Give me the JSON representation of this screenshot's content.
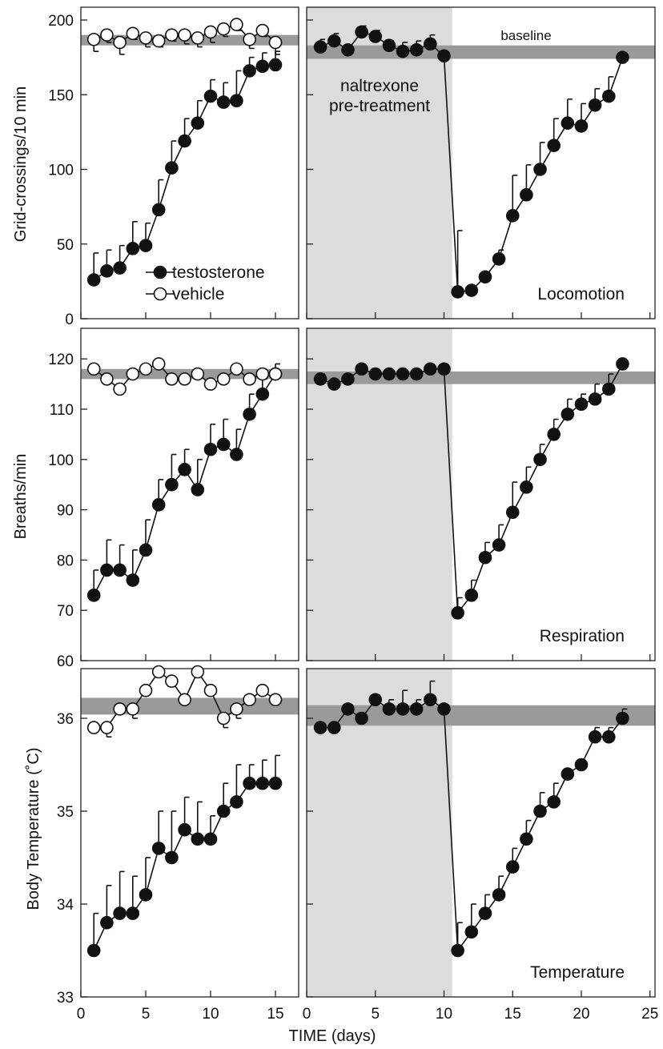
{
  "colors": {
    "baseline_band": "#9a9a9a",
    "shade": "#dcdcdc",
    "line": "#111111",
    "filled_marker": "#111111",
    "open_marker": "#ffffff"
  },
  "chart_data": [
    {
      "id": "locomotion-left",
      "type": "line",
      "ylabel": "Grid-crossings/10 min",
      "xlim": [
        0,
        16
      ],
      "ylim": [
        0,
        210
      ],
      "yticks": [
        0,
        50,
        100,
        150,
        200
      ],
      "baseline_band": [
        183,
        190
      ],
      "legend": [
        "testosterone",
        "vehicle"
      ],
      "legend_position": "bottom-left",
      "series": [
        {
          "name": "testosterone",
          "marker": "filled",
          "x": [
            1,
            2,
            3,
            4,
            5,
            6,
            7,
            8,
            9,
            10,
            11,
            12,
            13,
            14,
            15
          ],
          "y": [
            26,
            32,
            34,
            47,
            49,
            73,
            101,
            119,
            131,
            149,
            145,
            146,
            166,
            169,
            170
          ],
          "err_upper": [
            18,
            14,
            15,
            18,
            15,
            20,
            18,
            15,
            15,
            11,
            13,
            20,
            9,
            9,
            9
          ]
        },
        {
          "name": "vehicle",
          "marker": "open",
          "x": [
            1,
            2,
            3,
            4,
            5,
            6,
            7,
            8,
            9,
            10,
            11,
            12,
            13,
            14,
            15
          ],
          "y": [
            187,
            190,
            185,
            191,
            188,
            186,
            190,
            190,
            188,
            192,
            194,
            197,
            187,
            193,
            185
          ],
          "err_lower": [
            8,
            5,
            8,
            4,
            6,
            4,
            4,
            6,
            6,
            7,
            5,
            4,
            6,
            4,
            8
          ]
        }
      ]
    },
    {
      "id": "locomotion-right",
      "type": "line",
      "label": "Locomotion",
      "xlim": [
        0,
        25
      ],
      "ylim": [
        0,
        210
      ],
      "shaded_x": [
        0,
        10.6
      ],
      "shade_label": [
        "naltrexone",
        "pre-treatment"
      ],
      "band_label": "baseline",
      "baseline_band": [
        174,
        183
      ],
      "series": [
        {
          "name": "testosterone",
          "marker": "filled",
          "x": [
            1,
            2,
            3,
            4,
            5,
            6,
            7,
            8,
            9,
            10,
            11,
            12,
            13,
            14,
            15,
            16,
            17,
            18,
            19,
            20,
            21,
            22,
            23
          ],
          "y": [
            182,
            186,
            180,
            192,
            189,
            183,
            179,
            180,
            184,
            176,
            18,
            19,
            28,
            40,
            69,
            83,
            100,
            116,
            131,
            129,
            143,
            149,
            175
          ],
          "err_upper": [
            5,
            5,
            0,
            4,
            4,
            3,
            6,
            6,
            6,
            0,
            41,
            0,
            0,
            6,
            27,
            20,
            18,
            18,
            16,
            15,
            11,
            13,
            0
          ]
        }
      ]
    },
    {
      "id": "respiration-left",
      "type": "line",
      "ylabel": "Breaths/min",
      "xlim": [
        0,
        16
      ],
      "ylim": [
        60,
        122
      ],
      "yticks": [
        60,
        70,
        80,
        90,
        100,
        110,
        120
      ],
      "baseline_band": [
        116,
        118
      ],
      "series": [
        {
          "name": "testosterone",
          "marker": "filled",
          "x": [
            1,
            2,
            3,
            4,
            5,
            6,
            7,
            8,
            9,
            10,
            11,
            12,
            13,
            14,
            15
          ],
          "y": [
            73,
            78,
            78,
            76,
            82,
            91,
            95,
            98,
            94,
            102,
            103,
            101,
            109,
            113,
            117
          ],
          "err_upper": [
            5,
            6,
            5,
            6,
            6,
            5,
            6,
            4,
            6,
            5,
            5,
            5,
            4,
            3,
            2
          ]
        },
        {
          "name": "vehicle",
          "marker": "open",
          "x": [
            1,
            2,
            3,
            4,
            5,
            6,
            7,
            8,
            9,
            10,
            11,
            12,
            13,
            14,
            15
          ],
          "y": [
            118,
            116,
            114,
            117,
            118,
            119,
            116,
            116,
            117,
            115,
            116,
            118,
            116,
            117,
            117
          ],
          "err_lower": [
            0,
            0,
            0,
            0,
            0,
            0,
            0,
            0,
            0,
            0,
            0,
            0,
            0,
            0,
            0
          ]
        }
      ]
    },
    {
      "id": "respiration-right",
      "type": "line",
      "label": "Respiration",
      "xlim": [
        0,
        25
      ],
      "ylim": [
        60,
        122
      ],
      "shaded_x": [
        0,
        10.6
      ],
      "baseline_band": [
        115,
        117.5
      ],
      "series": [
        {
          "name": "testosterone",
          "marker": "filled",
          "x": [
            1,
            2,
            3,
            4,
            5,
            6,
            7,
            8,
            9,
            10,
            11,
            12,
            13,
            14,
            15,
            16,
            17,
            18,
            19,
            20,
            21,
            22,
            23
          ],
          "y": [
            116,
            115,
            116,
            118,
            117,
            117,
            117,
            117,
            118,
            118,
            69.5,
            73,
            80.5,
            83,
            89.5,
            94.5,
            100,
            105,
            109,
            111,
            112,
            114,
            119
          ],
          "err_upper": [
            1,
            0,
            0,
            0,
            0,
            0,
            0,
            0,
            0,
            0,
            3,
            3,
            3,
            4,
            6,
            4,
            3,
            3,
            3,
            2,
            3,
            3,
            0
          ]
        }
      ]
    },
    {
      "id": "temperature-left",
      "type": "line",
      "ylabel": "Body Temperature (˚C)",
      "xlabel": "TIME (days)",
      "xlim": [
        0,
        16
      ],
      "ylim": [
        33,
        36.55
      ],
      "yticks": [
        33,
        34,
        35,
        36
      ],
      "xticks": [
        0,
        5,
        10,
        15
      ],
      "baseline_band": [
        36.04,
        36.22
      ],
      "series": [
        {
          "name": "testosterone",
          "marker": "filled",
          "x": [
            1,
            2,
            3,
            4,
            5,
            6,
            7,
            8,
            9,
            10,
            11,
            12,
            13,
            14,
            15
          ],
          "y": [
            33.5,
            33.8,
            33.9,
            33.9,
            34.1,
            34.6,
            34.5,
            34.8,
            34.7,
            34.7,
            35.0,
            35.1,
            35.3,
            35.3,
            35.3
          ],
          "err_upper": [
            0.4,
            0.4,
            0.45,
            0.4,
            0.4,
            0.4,
            0.5,
            0.35,
            0.4,
            0.25,
            0.3,
            0.4,
            0.2,
            0.25,
            0.3
          ]
        },
        {
          "name": "vehicle",
          "marker": "open",
          "x": [
            1,
            2,
            3,
            4,
            5,
            6,
            7,
            8,
            9,
            10,
            11,
            12,
            13,
            14,
            15
          ],
          "y": [
            35.9,
            35.9,
            36.1,
            36.1,
            36.3,
            36.5,
            36.4,
            36.2,
            36.5,
            36.3,
            36.0,
            36.1,
            36.2,
            36.3,
            36.2
          ],
          "err_lower": [
            0,
            0.1,
            0,
            0.1,
            0,
            0,
            0,
            0,
            0,
            0,
            0.1,
            0.1,
            0,
            0,
            0
          ]
        }
      ]
    },
    {
      "id": "temperature-right",
      "type": "line",
      "label": "Temperature",
      "xlim": [
        0,
        25
      ],
      "ylim": [
        33,
        36.55
      ],
      "xticks": [
        0,
        5,
        10,
        15,
        20,
        25
      ],
      "shaded_x": [
        0,
        10.6
      ],
      "baseline_band": [
        35.92,
        36.14
      ],
      "series": [
        {
          "name": "testosterone",
          "marker": "filled",
          "x": [
            1,
            2,
            3,
            4,
            5,
            6,
            7,
            8,
            9,
            10,
            11,
            12,
            13,
            14,
            15,
            16,
            17,
            18,
            19,
            20,
            21,
            22,
            23
          ],
          "y": [
            35.9,
            35.9,
            36.1,
            36.0,
            36.2,
            36.1,
            36.1,
            36.1,
            36.2,
            36.1,
            33.5,
            33.7,
            33.9,
            34.1,
            34.4,
            34.7,
            35.0,
            35.1,
            35.4,
            35.5,
            35.8,
            35.8,
            36.0
          ],
          "err_upper": [
            0,
            0,
            0,
            0,
            0.05,
            0.1,
            0.2,
            0.1,
            0.2,
            0,
            0.3,
            0.3,
            0.2,
            0.2,
            0.2,
            0.2,
            0.2,
            0.2,
            0,
            0,
            0.1,
            0.1,
            0.1
          ]
        }
      ]
    }
  ]
}
